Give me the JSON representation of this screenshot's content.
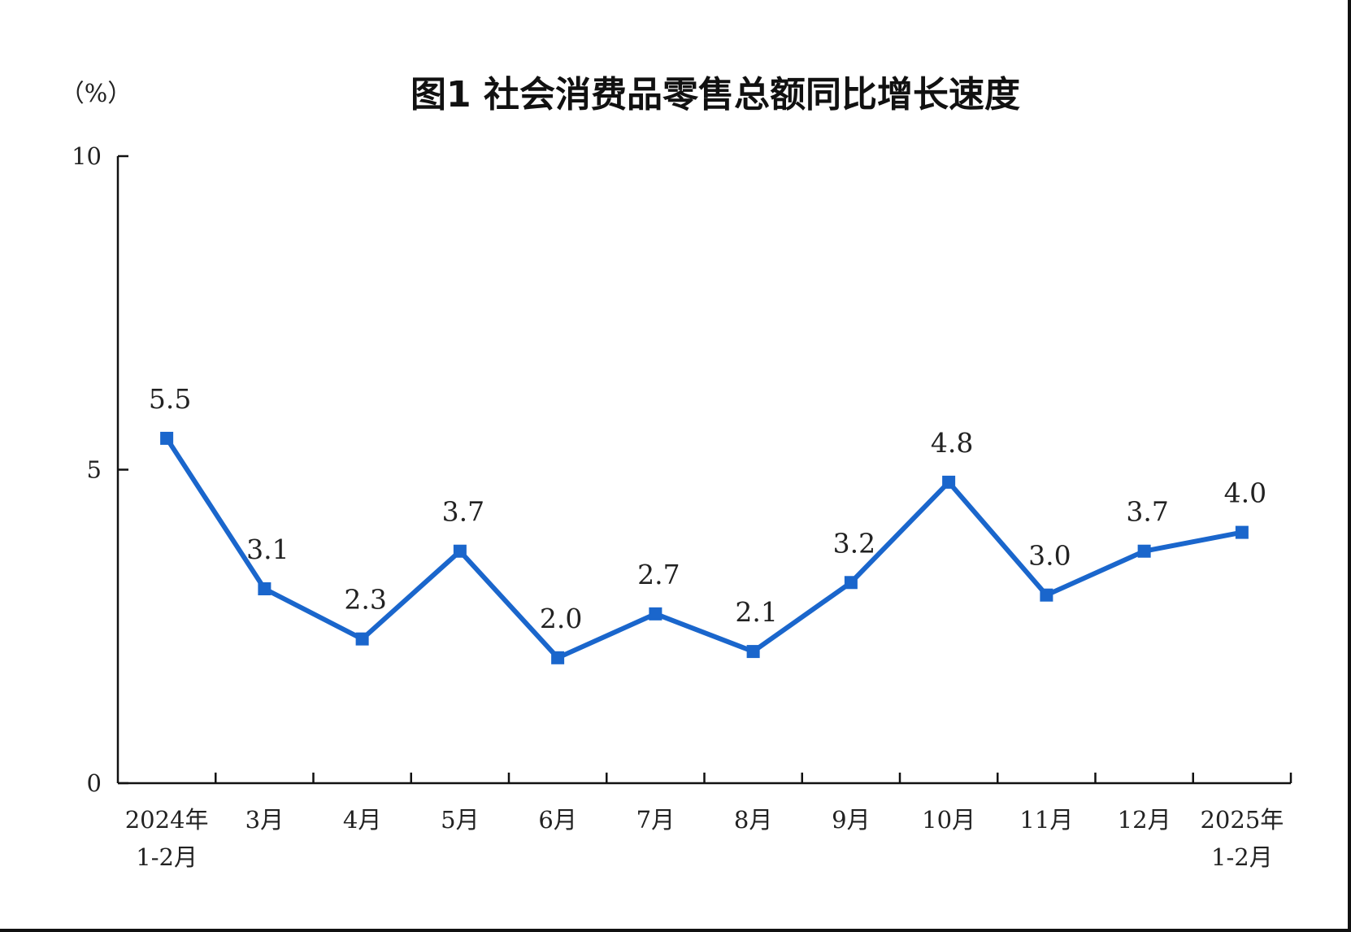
{
  "chart_data": {
    "type": "line",
    "title": "图1  社会消费品零售总额同比增长速度",
    "unit_label": "（%）",
    "xlabel": "",
    "ylabel": "",
    "ylim": [
      0,
      10
    ],
    "y_ticks": [
      0,
      5,
      10
    ],
    "grid": false,
    "legend": "none",
    "categories": [
      [
        "2024年",
        "1-2月"
      ],
      [
        "3月"
      ],
      [
        "4月"
      ],
      [
        "5月"
      ],
      [
        "6月"
      ],
      [
        "7月"
      ],
      [
        "8月"
      ],
      [
        "9月"
      ],
      [
        "10月"
      ],
      [
        "11月"
      ],
      [
        "12月"
      ],
      [
        "2025年",
        "1-2月"
      ]
    ],
    "series": [
      {
        "values": [
          5.5,
          3.1,
          2.3,
          3.7,
          2.0,
          2.7,
          2.1,
          3.2,
          4.8,
          3.0,
          3.7,
          4.0
        ],
        "value_labels": [
          "5.5",
          "3.1",
          "2.3",
          "3.7",
          "2.0",
          "2.7",
          "2.1",
          "3.2",
          "4.8",
          "3.0",
          "3.7",
          "4.0"
        ],
        "color": "#1a66cc"
      }
    ]
  }
}
